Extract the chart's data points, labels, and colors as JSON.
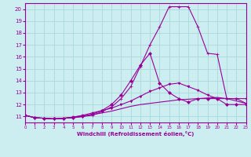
{
  "xlabel": "Windchill (Refroidissement éolien,°C)",
  "bg_color": "#cceef0",
  "grid_color": "#aad8dc",
  "line_color": "#990099",
  "xlim": [
    0,
    23
  ],
  "ylim": [
    10.5,
    20.5
  ],
  "xticks": [
    0,
    1,
    2,
    3,
    4,
    5,
    6,
    7,
    8,
    9,
    10,
    11,
    12,
    13,
    14,
    15,
    16,
    17,
    18,
    19,
    20,
    21,
    22,
    23
  ],
  "yticks": [
    11,
    12,
    13,
    14,
    15,
    16,
    17,
    18,
    19,
    20
  ],
  "lines": [
    {
      "x": [
        0,
        1,
        2,
        3,
        4,
        5,
        6,
        7,
        8,
        9,
        10,
        11,
        12,
        13,
        14,
        15,
        16,
        17,
        18,
        19,
        20,
        21,
        22,
        23
      ],
      "y": [
        11.1,
        10.9,
        10.85,
        10.8,
        10.85,
        10.9,
        11.0,
        11.1,
        11.4,
        11.8,
        12.5,
        13.5,
        15.2,
        17.0,
        18.5,
        20.2,
        20.2,
        20.2,
        18.5,
        16.3,
        16.2,
        12.5,
        12.5,
        12.1
      ],
      "marker": "+",
      "ms": 3
    },
    {
      "x": [
        0,
        1,
        2,
        3,
        4,
        5,
        6,
        7,
        8,
        9,
        10,
        11,
        12,
        13,
        14,
        15,
        16,
        17,
        18,
        19,
        20,
        21,
        22,
        23
      ],
      "y": [
        11.1,
        10.9,
        10.85,
        10.8,
        10.85,
        10.9,
        11.0,
        11.2,
        11.5,
        12.0,
        12.8,
        14.0,
        15.3,
        16.3,
        13.8,
        13.0,
        12.5,
        12.2,
        12.5,
        12.5,
        12.5,
        12.0,
        12.0,
        12.0
      ],
      "marker": "D",
      "ms": 2
    },
    {
      "x": [
        0,
        1,
        2,
        3,
        4,
        5,
        6,
        7,
        8,
        9,
        10,
        11,
        12,
        13,
        14,
        15,
        16,
        17,
        18,
        19,
        20,
        21,
        22,
        23
      ],
      "y": [
        11.1,
        10.9,
        10.85,
        10.8,
        10.85,
        10.95,
        11.1,
        11.3,
        11.5,
        11.7,
        12.0,
        12.3,
        12.7,
        13.1,
        13.4,
        13.7,
        13.8,
        13.5,
        13.2,
        12.8,
        12.5,
        12.5,
        12.5,
        12.5
      ],
      "marker": "v",
      "ms": 2
    },
    {
      "x": [
        0,
        1,
        2,
        3,
        4,
        5,
        6,
        7,
        8,
        9,
        10,
        11,
        12,
        13,
        14,
        15,
        16,
        17,
        18,
        19,
        20,
        21,
        22,
        23
      ],
      "y": [
        11.1,
        10.9,
        10.85,
        10.8,
        10.85,
        10.95,
        11.05,
        11.15,
        11.3,
        11.45,
        11.65,
        11.85,
        12.0,
        12.1,
        12.2,
        12.3,
        12.4,
        12.45,
        12.5,
        12.55,
        12.6,
        12.5,
        12.3,
        12.1
      ],
      "marker": null,
      "ms": 0
    }
  ]
}
